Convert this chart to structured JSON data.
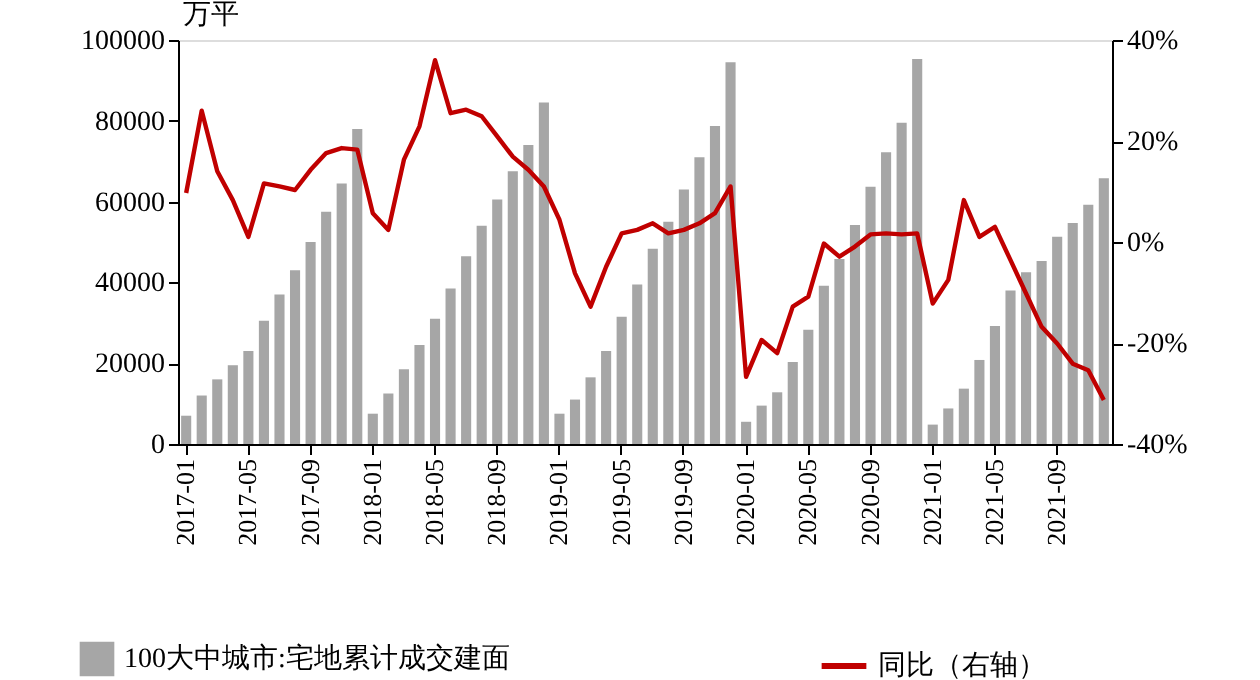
{
  "chart_data": {
    "type": "bar",
    "ylabel": "万平",
    "categories": [
      "2017-01",
      null,
      null,
      null,
      "2017-05",
      null,
      null,
      null,
      "2017-09",
      null,
      null,
      null,
      "2018-01",
      null,
      null,
      null,
      "2018-05",
      null,
      null,
      null,
      "2018-09",
      null,
      null,
      null,
      "2019-01",
      null,
      null,
      null,
      "2019-05",
      null,
      null,
      null,
      "2019-09",
      null,
      null,
      null,
      "2020-01",
      null,
      null,
      null,
      "2020-05",
      null,
      null,
      null,
      "2020-09",
      null,
      null,
      null,
      "2021-01",
      null,
      null,
      null,
      "2021-05",
      null,
      null,
      null,
      "2021-09",
      null,
      null,
      null
    ],
    "series": [
      {
        "name": "100大中城市:宅地累计成交建面",
        "color": "#a6a6a6",
        "values": [
          7000,
          12000,
          16000,
          19500,
          23000,
          30500,
          37000,
          43000,
          50000,
          57500,
          64500,
          78000,
          7500,
          12500,
          18500,
          24500,
          31000,
          38500,
          46500,
          54000,
          60500,
          67500,
          74000,
          84500,
          7500,
          11000,
          16500,
          23000,
          31500,
          39500,
          48300,
          55000,
          63000,
          71000,
          78700,
          94500,
          5500,
          9500,
          12800,
          20300,
          28300,
          39200,
          45800,
          54200,
          63700,
          72200,
          79500,
          95300,
          4800,
          8800,
          13700,
          20800,
          29200,
          38000,
          42500,
          45300,
          51300,
          54700,
          59200,
          65800
        ]
      },
      {
        "name": "同比（右轴）",
        "type": "line",
        "axis": "y2",
        "color": "#c00000",
        "values": [
          9.7,
          26,
          14,
          8.3,
          1,
          11.6,
          11,
          10.3,
          14.3,
          17.6,
          18.6,
          18.3,
          5.7,
          2.4,
          16.3,
          22.9,
          36,
          25.5,
          26.2,
          24.9,
          20.9,
          16.9,
          14.3,
          11,
          4.4,
          -6.2,
          -12.8,
          -4.9,
          1.7,
          2.4,
          3.7,
          1.7,
          2.4,
          3.7,
          5.7,
          11,
          -26.7,
          -19.4,
          -22,
          -12.8,
          -10.8,
          -0.3,
          -2.9,
          -0.9,
          1.5,
          1.7,
          1.5,
          1.7,
          -12.2,
          -7.5,
          8.3,
          1,
          3,
          -3.6,
          -10.2,
          -16.8,
          -20.1,
          -24.1,
          -25.4,
          -31.3
        ]
      }
    ],
    "ylim": [
      0,
      100000
    ],
    "yticks": [
      0,
      20000,
      40000,
      60000,
      80000,
      100000
    ],
    "y2lim": [
      -40,
      40
    ],
    "y2ticks": [
      {
        "value": -40,
        "label": "-40%"
      },
      {
        "value": -20,
        "label": "-20%"
      },
      {
        "value": 0,
        "label": "0%"
      },
      {
        "value": 20,
        "label": "20%"
      },
      {
        "value": 40,
        "label": "40%"
      }
    ],
    "grid": false,
    "legend": "bottom",
    "marker": "none",
    "line_style": "solid"
  }
}
